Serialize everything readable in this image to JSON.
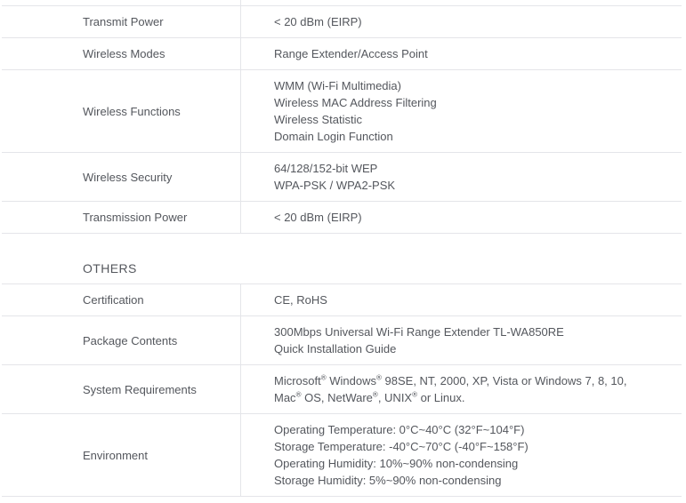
{
  "page": {
    "background": "#ffffff",
    "text_color": "#54575d",
    "border_color": "#e4e5e9"
  },
  "spec_table_top": {
    "rows": [
      {
        "label": "Transmit Power",
        "lines": [
          "< 20 dBm (EIRP)"
        ]
      },
      {
        "label": "Wireless Modes",
        "lines": [
          "Range Extender/Access Point"
        ]
      },
      {
        "label": "Wireless Functions",
        "lines": [
          "WMM (Wi-Fi Multimedia)",
          "Wireless MAC Address Filtering",
          "Wireless Statistic",
          "Domain Login Function"
        ]
      },
      {
        "label": "Wireless Security",
        "lines": [
          "64/128/152-bit WEP",
          "WPA-PSK / WPA2-PSK"
        ]
      },
      {
        "label": "Transmission Power",
        "lines": [
          "< 20 dBm (EIRP)"
        ]
      }
    ]
  },
  "others_section": {
    "heading": "OTHERS",
    "rows": [
      {
        "label": "Certification",
        "lines": [
          "CE, RoHS"
        ]
      },
      {
        "label": "Package Contents",
        "lines": [
          "300Mbps Universal Wi-Fi Range Extender TL-WA850RE",
          "Quick Installation Guide"
        ]
      },
      {
        "label": "System Requirements",
        "lines": [
          "Microsoft® Windows® 98SE, NT, 2000, XP, Vista or Windows 7, 8, 10,",
          "Mac® OS, NetWare®, UNIX® or Linux."
        ]
      },
      {
        "label": "Environment",
        "lines": [
          "Operating Temperature: 0°C~40°C (32°F~104°F)",
          "Storage Temperature: -40°C~70°C (-40°F~158°F)",
          "Operating Humidity: 10%~90% non-condensing",
          "Storage Humidity: 5%~90% non-condensing"
        ]
      }
    ]
  }
}
